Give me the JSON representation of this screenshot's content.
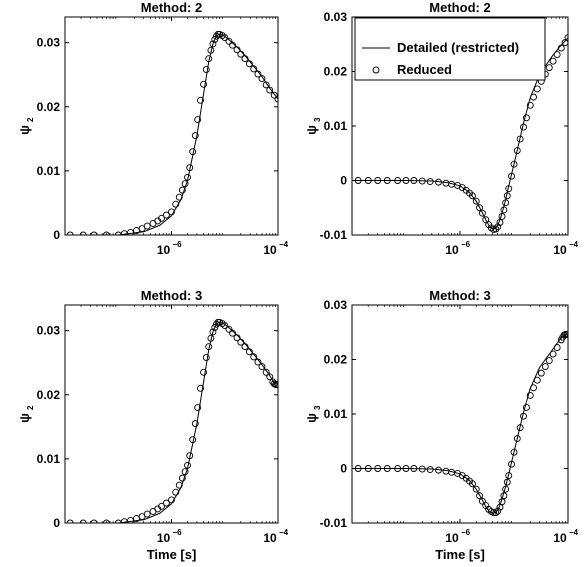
{
  "figure": {
    "x_axis_label": "Time [s]"
  },
  "legend": {
    "entries": [
      "Detailed (restricted)",
      "Reduced"
    ]
  },
  "chart_data": [
    {
      "type": "line",
      "title": "Method: 2",
      "ylabel_base": "ψ",
      "ylabel_sub": "2",
      "xlabel": "",
      "xscale": "log",
      "xlim": [
        1e-08,
        0.0001
      ],
      "ylim": [
        0,
        0.034
      ],
      "yticks": [
        0,
        0.01,
        0.02,
        0.03
      ],
      "ytick_labels": [
        "0",
        "0.01",
        "0.02",
        "0.03"
      ],
      "xticks": [
        1e-06,
        0.0001
      ],
      "xtick_labels": [
        [
          "10",
          "−6"
        ],
        [
          "10",
          "−4"
        ]
      ],
      "legend": false,
      "series": [
        {
          "style": "line",
          "x": [
            1e-08,
            1e-07,
            3e-07,
            6e-07,
            1e-06,
            1.5e-06,
            2e-06,
            3e-06,
            4e-06,
            5e-06,
            6e-06,
            7e-06,
            8e-06,
            1e-05,
            1.3e-05,
            1.8e-05,
            2.5e-05,
            3.5e-05,
            5e-05,
            7e-05,
            0.0001
          ],
          "y": [
            0,
            0,
            0.0005,
            0.0015,
            0.003,
            0.0055,
            0.0085,
            0.0155,
            0.022,
            0.027,
            0.0298,
            0.0311,
            0.0313,
            0.031,
            0.0302,
            0.0291,
            0.0278,
            0.0263,
            0.0247,
            0.0229,
            0.0212
          ]
        },
        {
          "style": "markers",
          "marker": "circle",
          "x": [
            1.25e-08,
            2.2e-08,
            3.5e-08,
            6e-08,
            1e-07,
            1.3e-07,
            1.7e-07,
            2.2e-07,
            2.8e-07,
            3.5e-07,
            4.5e-07,
            5.5e-07,
            6.5e-07,
            8e-07,
            1e-06,
            1.2e-06,
            1.4e-06,
            1.6e-06,
            1.8e-06,
            2e-06,
            2.2e-06,
            2.5e-06,
            2.8e-06,
            3.1e-06,
            3.5e-06,
            4e-06,
            4.5e-06,
            5e-06,
            5.5e-06,
            6e-06,
            6.5e-06,
            7e-06,
            7.5e-06,
            8e-06,
            9e-06,
            1e-05,
            1.2e-05,
            1.4e-05,
            1.7e-05,
            2e-05,
            2.4e-05,
            2.9e-05,
            3.5e-05,
            4.2e-05,
            5e-05,
            6e-05,
            7e-05,
            8.5e-05,
            0.0001
          ],
          "y": [
            0,
            0,
            0,
            0,
            0,
            0.0002,
            0.0004,
            0.0007,
            0.001,
            0.0014,
            0.0018,
            0.0022,
            0.0026,
            0.0031,
            0.0036,
            0.0048,
            0.0059,
            0.007,
            0.008,
            0.009,
            0.0105,
            0.013,
            0.0155,
            0.018,
            0.021,
            0.0235,
            0.0258,
            0.0275,
            0.0288,
            0.0298,
            0.0305,
            0.031,
            0.0313,
            0.0313,
            0.0311,
            0.0308,
            0.0302,
            0.0296,
            0.0289,
            0.0282,
            0.0275,
            0.0267,
            0.0259,
            0.0251,
            0.0244,
            0.0234,
            0.0226,
            0.0218,
            0.0212
          ]
        }
      ]
    },
    {
      "type": "line",
      "title": "Method: 2",
      "ylabel_base": "ψ",
      "ylabel_sub": "3",
      "xlabel": "",
      "xscale": "log",
      "xlim": [
        1e-08,
        0.0001
      ],
      "ylim": [
        -0.01,
        0.03
      ],
      "yticks": [
        -0.01,
        0,
        0.01,
        0.02,
        0.03
      ],
      "ytick_labels": [
        "-0.01",
        "0",
        "0.01",
        "0.02",
        "0.03"
      ],
      "xticks": [
        1e-06,
        0.0001
      ],
      "xtick_labels": [
        [
          "10",
          "−6"
        ],
        [
          "10",
          "−4"
        ]
      ],
      "legend": true,
      "legend_position": "top-right",
      "series": [
        {
          "name": "Detailed (restricted)",
          "style": "line",
          "x": [
            1e-08,
            1e-07,
            3e-07,
            6e-07,
            1e-06,
            1.5e-06,
            2e-06,
            2.5e-06,
            3e-06,
            3.5e-06,
            4e-06,
            4.5e-06,
            5e-06,
            5.5e-06,
            6e-06,
            7e-06,
            8e-06,
            1e-05,
            1.5e-05,
            2e-05,
            3e-05,
            5e-05,
            7e-05,
            0.0001
          ],
          "y": [
            0,
            0,
            -0.0001,
            -0.0004,
            -0.001,
            -0.0022,
            -0.0038,
            -0.0056,
            -0.0072,
            -0.0084,
            -0.0089,
            -0.0088,
            -0.0082,
            -0.0072,
            -0.006,
            -0.0035,
            -0.001,
            0.003,
            0.0105,
            0.0152,
            0.0195,
            0.0227,
            0.0245,
            0.0262
          ]
        },
        {
          "name": "Reduced",
          "style": "markers",
          "marker": "circle",
          "x": [
            1.3e-08,
            2e-08,
            3e-08,
            4.5e-08,
            7e-08,
            1e-07,
            1.4e-07,
            2e-07,
            2.8e-07,
            4e-07,
            5.5e-07,
            7e-07,
            9e-07,
            1.1e-06,
            1.3e-06,
            1.5e-06,
            1.7e-06,
            2e-06,
            2.3e-06,
            2.6e-06,
            3e-06,
            3.4e-06,
            3.8e-06,
            4.2e-06,
            4.6e-06,
            5e-06,
            5.5e-06,
            6e-06,
            6.5e-06,
            7e-06,
            7.5e-06,
            8e-06,
            9e-06,
            1e-05,
            1.15e-05,
            1.3e-05,
            1.5e-05,
            1.7e-05,
            2e-05,
            2.3e-05,
            2.7e-05,
            3.2e-05,
            3.8e-05,
            4.5e-05,
            5.3e-05,
            6.3e-05,
            7.5e-05,
            8.8e-05,
            0.0001
          ],
          "y": [
            0,
            0,
            0,
            0,
            0,
            0,
            0,
            -0.0001,
            -0.0002,
            -0.0003,
            -0.0005,
            -0.0007,
            -0.0009,
            -0.0013,
            -0.0018,
            -0.0023,
            -0.0028,
            -0.0038,
            -0.005,
            -0.006,
            -0.0072,
            -0.0081,
            -0.0087,
            -0.009,
            -0.0089,
            -0.0085,
            -0.0077,
            -0.0066,
            -0.0054,
            -0.0041,
            -0.0028,
            -0.0015,
            0.0008,
            0.003,
            0.0055,
            0.0076,
            0.0098,
            0.0115,
            0.0138,
            0.0153,
            0.0168,
            0.0182,
            0.0195,
            0.0207,
            0.0219,
            0.0231,
            0.0243,
            0.0253,
            0.0262
          ]
        }
      ]
    },
    {
      "type": "line",
      "title": "Method: 3",
      "ylabel_base": "ψ",
      "ylabel_sub": "2",
      "xlabel": "Time [s]",
      "xscale": "log",
      "xlim": [
        1e-08,
        0.0001
      ],
      "ylim": [
        0,
        0.034
      ],
      "yticks": [
        0,
        0.01,
        0.02,
        0.03
      ],
      "ytick_labels": [
        "0",
        "0.01",
        "0.02",
        "0.03"
      ],
      "xticks": [
        1e-06,
        0.0001
      ],
      "xtick_labels": [
        [
          "10",
          "−6"
        ],
        [
          "10",
          "−4"
        ]
      ],
      "legend": false,
      "series": [
        {
          "style": "line",
          "x": [
            1e-08,
            1e-07,
            3e-07,
            6e-07,
            1e-06,
            1.5e-06,
            2e-06,
            3e-06,
            4e-06,
            5e-06,
            6e-06,
            7e-06,
            8e-06,
            1e-05,
            1.3e-05,
            1.8e-05,
            2.5e-05,
            3.5e-05,
            5e-05,
            7e-05,
            8.5e-05,
            0.0001
          ],
          "y": [
            0,
            0,
            0.0005,
            0.0015,
            0.003,
            0.0055,
            0.0085,
            0.0155,
            0.022,
            0.027,
            0.0298,
            0.0311,
            0.0313,
            0.031,
            0.0302,
            0.0291,
            0.0278,
            0.0263,
            0.0247,
            0.023,
            0.0218,
            0.0216
          ]
        },
        {
          "style": "markers",
          "marker": "circle",
          "x": [
            1.25e-08,
            2.2e-08,
            3.5e-08,
            6e-08,
            1e-07,
            1.3e-07,
            1.7e-07,
            2.2e-07,
            2.8e-07,
            3.5e-07,
            4.5e-07,
            5.5e-07,
            6.5e-07,
            8e-07,
            1e-06,
            1.2e-06,
            1.4e-06,
            1.6e-06,
            1.8e-06,
            2e-06,
            2.2e-06,
            2.5e-06,
            2.8e-06,
            3.1e-06,
            3.5e-06,
            4e-06,
            4.5e-06,
            5e-06,
            5.5e-06,
            6e-06,
            6.5e-06,
            7e-06,
            7.5e-06,
            8e-06,
            9e-06,
            1e-05,
            1.2e-05,
            1.4e-05,
            1.7e-05,
            2e-05,
            2.4e-05,
            2.9e-05,
            3.5e-05,
            4.2e-05,
            5e-05,
            6e-05,
            7e-05,
            8e-05,
            8.5e-05,
            9e-05,
            9.5e-05,
            0.0001
          ],
          "y": [
            0,
            0,
            0,
            0,
            0,
            0.0002,
            0.0004,
            0.0007,
            0.001,
            0.0014,
            0.0018,
            0.0022,
            0.0026,
            0.0031,
            0.0036,
            0.0048,
            0.0059,
            0.007,
            0.008,
            0.009,
            0.0105,
            0.013,
            0.0155,
            0.018,
            0.021,
            0.0235,
            0.0258,
            0.0275,
            0.0288,
            0.0298,
            0.0305,
            0.031,
            0.0313,
            0.0313,
            0.0311,
            0.0308,
            0.0302,
            0.0296,
            0.0289,
            0.0282,
            0.0275,
            0.0267,
            0.0259,
            0.0251,
            0.0244,
            0.0235,
            0.0228,
            0.022,
            0.0217,
            0.0216,
            0.0216,
            0.0216
          ]
        }
      ]
    },
    {
      "type": "line",
      "title": "Method: 3",
      "ylabel_base": "ψ",
      "ylabel_sub": "3",
      "xlabel": "Time [s]",
      "xscale": "log",
      "xlim": [
        1e-08,
        0.0001
      ],
      "ylim": [
        -0.01,
        0.03
      ],
      "yticks": [
        -0.01,
        0,
        0.01,
        0.02,
        0.03
      ],
      "ytick_labels": [
        "-0.01",
        "0",
        "0.01",
        "0.02",
        "0.03"
      ],
      "xticks": [
        1e-06,
        0.0001
      ],
      "xtick_labels": [
        [
          "10",
          "−6"
        ],
        [
          "10",
          "−4"
        ]
      ],
      "legend": false,
      "series": [
        {
          "style": "line",
          "x": [
            1e-08,
            1e-07,
            3e-07,
            6e-07,
            1e-06,
            1.5e-06,
            2e-06,
            2.5e-06,
            3e-06,
            3.5e-06,
            4e-06,
            4.5e-06,
            5e-06,
            5.5e-06,
            6e-06,
            7e-06,
            8e-06,
            1e-05,
            1.5e-05,
            2e-05,
            3e-05,
            5e-05,
            7e-05,
            8.5e-05,
            0.0001
          ],
          "y": [
            0,
            0,
            -0.0001,
            -0.0004,
            -0.001,
            -0.0022,
            -0.0038,
            -0.0055,
            -0.007,
            -0.0079,
            -0.0082,
            -0.0081,
            -0.0076,
            -0.0067,
            -0.0056,
            -0.0033,
            -0.001,
            0.003,
            0.0103,
            0.0147,
            0.0186,
            0.0216,
            0.0236,
            0.0245,
            0.0246
          ]
        },
        {
          "style": "markers",
          "marker": "circle",
          "x": [
            1.3e-08,
            2e-08,
            3e-08,
            4.5e-08,
            7e-08,
            1e-07,
            1.4e-07,
            2e-07,
            2.8e-07,
            4e-07,
            5.5e-07,
            7e-07,
            9e-07,
            1.1e-06,
            1.3e-06,
            1.5e-06,
            1.7e-06,
            2e-06,
            2.3e-06,
            2.6e-06,
            3e-06,
            3.4e-06,
            3.8e-06,
            4.2e-06,
            4.6e-06,
            5e-06,
            5.5e-06,
            6e-06,
            6.5e-06,
            7e-06,
            7.5e-06,
            8e-06,
            9e-06,
            1e-05,
            1.15e-05,
            1.3e-05,
            1.5e-05,
            1.7e-05,
            2e-05,
            2.3e-05,
            2.7e-05,
            3.2e-05,
            3.8e-05,
            4.5e-05,
            5.3e-05,
            6.3e-05,
            7.5e-05,
            8e-05,
            8.5e-05,
            9e-05,
            9.5e-05,
            0.0001
          ],
          "y": [
            0,
            0,
            0,
            0,
            0,
            0,
            0,
            -0.0001,
            -0.0002,
            -0.0003,
            -0.0005,
            -0.0007,
            -0.0009,
            -0.0013,
            -0.0018,
            -0.0023,
            -0.0028,
            -0.0038,
            -0.005,
            -0.006,
            -0.0068,
            -0.0075,
            -0.0079,
            -0.0081,
            -0.0081,
            -0.0078,
            -0.0071,
            -0.0061,
            -0.005,
            -0.0038,
            -0.0025,
            -0.0013,
            0.0008,
            0.003,
            0.0055,
            0.0075,
            0.0096,
            0.0112,
            0.0134,
            0.0148,
            0.0162,
            0.0175,
            0.0187,
            0.0198,
            0.021,
            0.0222,
            0.0236,
            0.0241,
            0.0245,
            0.0246,
            0.0246,
            0.0246
          ]
        }
      ]
    }
  ]
}
